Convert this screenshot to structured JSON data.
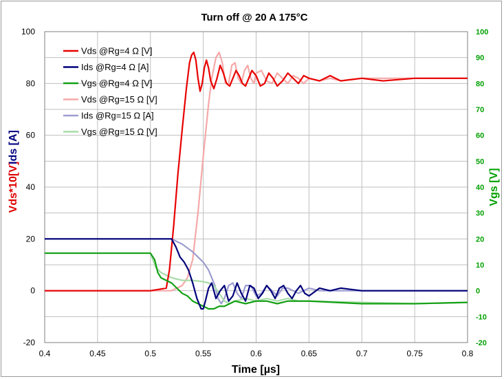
{
  "chart_data": {
    "type": "line",
    "title": "Turn off @ 20 A 175°C",
    "xlabel": "Time [µs]",
    "ylabel_left": [
      {
        "text": "Vds*10[V]",
        "color": "#e00000"
      },
      {
        "text": "Ids [A]",
        "color": "#000080"
      }
    ],
    "ylabel_right": {
      "text": "Vgs [V]",
      "color": "#00a000"
    },
    "xlim": [
      0.4,
      0.8
    ],
    "ylim_left": [
      -20,
      100
    ],
    "ylim_right": [
      -20,
      100
    ],
    "x_ticks": [
      "0.4",
      "0.45",
      "0.5",
      "0.55",
      "0.6",
      "0.65",
      "0.7",
      "0.75",
      "0.8"
    ],
    "x_tick_values": [
      0.4,
      0.45,
      0.5,
      0.55,
      0.6,
      0.65,
      0.7,
      0.75,
      0.8
    ],
    "y_ticks_left": [
      "100",
      "80",
      "60",
      "40",
      "20",
      "0",
      "-20"
    ],
    "y_tick_values_left": [
      100,
      80,
      60,
      40,
      20,
      0,
      -20
    ],
    "y_ticks_right": [
      "100",
      "90",
      "80",
      "70",
      "60",
      "50",
      "40",
      "30",
      "20",
      "10",
      "0",
      "-10",
      "-20"
    ],
    "y_tick_values_right": [
      100,
      90,
      80,
      70,
      60,
      50,
      40,
      30,
      20,
      10,
      0,
      -10,
      -20
    ],
    "grid": true,
    "legend_position": "top-left",
    "series": [
      {
        "name": "Vds @Rg=4 Ω [V]",
        "color": "#e80000",
        "width": 2.2,
        "x": [
          0.4,
          0.45,
          0.5,
          0.515,
          0.518,
          0.522,
          0.526,
          0.53,
          0.534,
          0.537,
          0.539,
          0.541,
          0.543,
          0.545,
          0.547,
          0.549,
          0.551,
          0.553,
          0.555,
          0.557,
          0.56,
          0.563,
          0.566,
          0.569,
          0.572,
          0.575,
          0.578,
          0.581,
          0.584,
          0.587,
          0.59,
          0.593,
          0.596,
          0.6,
          0.604,
          0.608,
          0.612,
          0.616,
          0.62,
          0.625,
          0.63,
          0.635,
          0.64,
          0.645,
          0.65,
          0.66,
          0.67,
          0.68,
          0.7,
          0.72,
          0.75,
          0.8
        ],
        "values": [
          0,
          0,
          0,
          1,
          8,
          25,
          45,
          62,
          78,
          88,
          91,
          92,
          89,
          82,
          77,
          80,
          86,
          89,
          86,
          81,
          78,
          82,
          87,
          84,
          80,
          79,
          82,
          85,
          83,
          80,
          79,
          82,
          85,
          83,
          79,
          80,
          84,
          82,
          79,
          81,
          84,
          82,
          80,
          83,
          82,
          81,
          83,
          81,
          82,
          81,
          82,
          82
        ]
      },
      {
        "name": "Ids @Rg=4 Ω [A]",
        "color": "#00007a",
        "width": 2.2,
        "x": [
          0.4,
          0.45,
          0.5,
          0.51,
          0.515,
          0.52,
          0.524,
          0.528,
          0.532,
          0.536,
          0.54,
          0.544,
          0.548,
          0.55,
          0.552,
          0.555,
          0.558,
          0.562,
          0.566,
          0.57,
          0.574,
          0.578,
          0.582,
          0.586,
          0.59,
          0.594,
          0.598,
          0.602,
          0.606,
          0.61,
          0.614,
          0.618,
          0.622,
          0.626,
          0.63,
          0.634,
          0.638,
          0.642,
          0.646,
          0.65,
          0.66,
          0.67,
          0.68,
          0.7,
          0.75,
          0.8
        ],
        "values": [
          20,
          20,
          20,
          20,
          20,
          20,
          17,
          13,
          11,
          8,
          3,
          -3,
          -7,
          -7,
          -4,
          1,
          3,
          -3,
          0,
          2,
          -4,
          -2,
          3,
          -1,
          -4,
          2,
          1,
          -3,
          -1,
          2,
          0,
          -3,
          1,
          2,
          -1,
          -3,
          0,
          2,
          -1,
          -2,
          1,
          0,
          1,
          0,
          0,
          0
        ]
      },
      {
        "name": "Vgs @Rg=4 Ω [V]",
        "color": "#14a014",
        "width": 2.2,
        "x": [
          0.4,
          0.45,
          0.49,
          0.5,
          0.504,
          0.507,
          0.51,
          0.515,
          0.52,
          0.525,
          0.53,
          0.535,
          0.54,
          0.545,
          0.55,
          0.555,
          0.56,
          0.565,
          0.57,
          0.575,
          0.58,
          0.59,
          0.6,
          0.61,
          0.62,
          0.63,
          0.65,
          0.7,
          0.75,
          0.8
        ],
        "values": [
          14.5,
          14.5,
          14.5,
          14.5,
          12,
          7,
          5,
          4,
          3,
          1,
          -1,
          -2,
          -4,
          -5,
          -6,
          -7,
          -7,
          -6,
          -6,
          -5,
          -4,
          -5,
          -4,
          -4,
          -5,
          -4,
          -4,
          -5,
          -5,
          -4.5
        ]
      },
      {
        "name": "Vds @Rg=15 Ω [V]",
        "color": "#f5a8a8",
        "width": 2.2,
        "x": [
          0.4,
          0.45,
          0.5,
          0.52,
          0.53,
          0.535,
          0.54,
          0.545,
          0.55,
          0.555,
          0.558,
          0.562,
          0.565,
          0.568,
          0.571,
          0.574,
          0.577,
          0.58,
          0.583,
          0.586,
          0.589,
          0.592,
          0.595,
          0.598,
          0.6,
          0.605,
          0.61,
          0.615,
          0.62,
          0.625,
          0.63,
          0.635,
          0.64,
          0.645,
          0.65,
          0.66,
          0.67,
          0.68,
          0.7,
          0.75,
          0.8
        ],
        "values": [
          0,
          0,
          0,
          0,
          2,
          5,
          12,
          30,
          52,
          72,
          82,
          90,
          92,
          88,
          80,
          80,
          87,
          88,
          82,
          80,
          85,
          87,
          82,
          80,
          84,
          85,
          81,
          80,
          84,
          82,
          80,
          83,
          82,
          80,
          82,
          81,
          82,
          81,
          82,
          82,
          82
        ]
      },
      {
        "name": "Ids @Rg=15 Ω [A]",
        "color": "#9d9dd0",
        "width": 2.2,
        "x": [
          0.4,
          0.45,
          0.5,
          0.51,
          0.52,
          0.525,
          0.53,
          0.535,
          0.54,
          0.545,
          0.55,
          0.555,
          0.558,
          0.561,
          0.564,
          0.567,
          0.57,
          0.574,
          0.578,
          0.582,
          0.586,
          0.59,
          0.595,
          0.6,
          0.605,
          0.61,
          0.615,
          0.62,
          0.625,
          0.63,
          0.64,
          0.65,
          0.66,
          0.68,
          0.7,
          0.75,
          0.8
        ],
        "values": [
          20,
          20,
          20,
          20,
          20,
          19,
          18,
          16.5,
          15,
          13,
          11,
          8,
          5,
          2,
          -3,
          -5,
          -3,
          2,
          3,
          -1,
          -3,
          2,
          2,
          -2,
          -1,
          2,
          0,
          -2,
          1,
          1,
          -1,
          1,
          0,
          0,
          0,
          0,
          0
        ]
      },
      {
        "name": "Vgs @Rg=15 Ω [V]",
        "color": "#a8dca8",
        "width": 2.2,
        "x": [
          0.4,
          0.45,
          0.49,
          0.5,
          0.505,
          0.51,
          0.52,
          0.53,
          0.54,
          0.55,
          0.555,
          0.56,
          0.565,
          0.57,
          0.575,
          0.58,
          0.59,
          0.6,
          0.61,
          0.62,
          0.63,
          0.64,
          0.65,
          0.7,
          0.75,
          0.8
        ],
        "values": [
          14.5,
          14.5,
          14.5,
          14.5,
          9,
          7,
          5,
          4,
          4,
          3.5,
          3,
          2,
          -1,
          -4,
          -5,
          -4,
          -3,
          -4,
          -3,
          -4,
          -3,
          -4,
          -4,
          -4.5,
          -5,
          -4.5
        ]
      }
    ]
  }
}
